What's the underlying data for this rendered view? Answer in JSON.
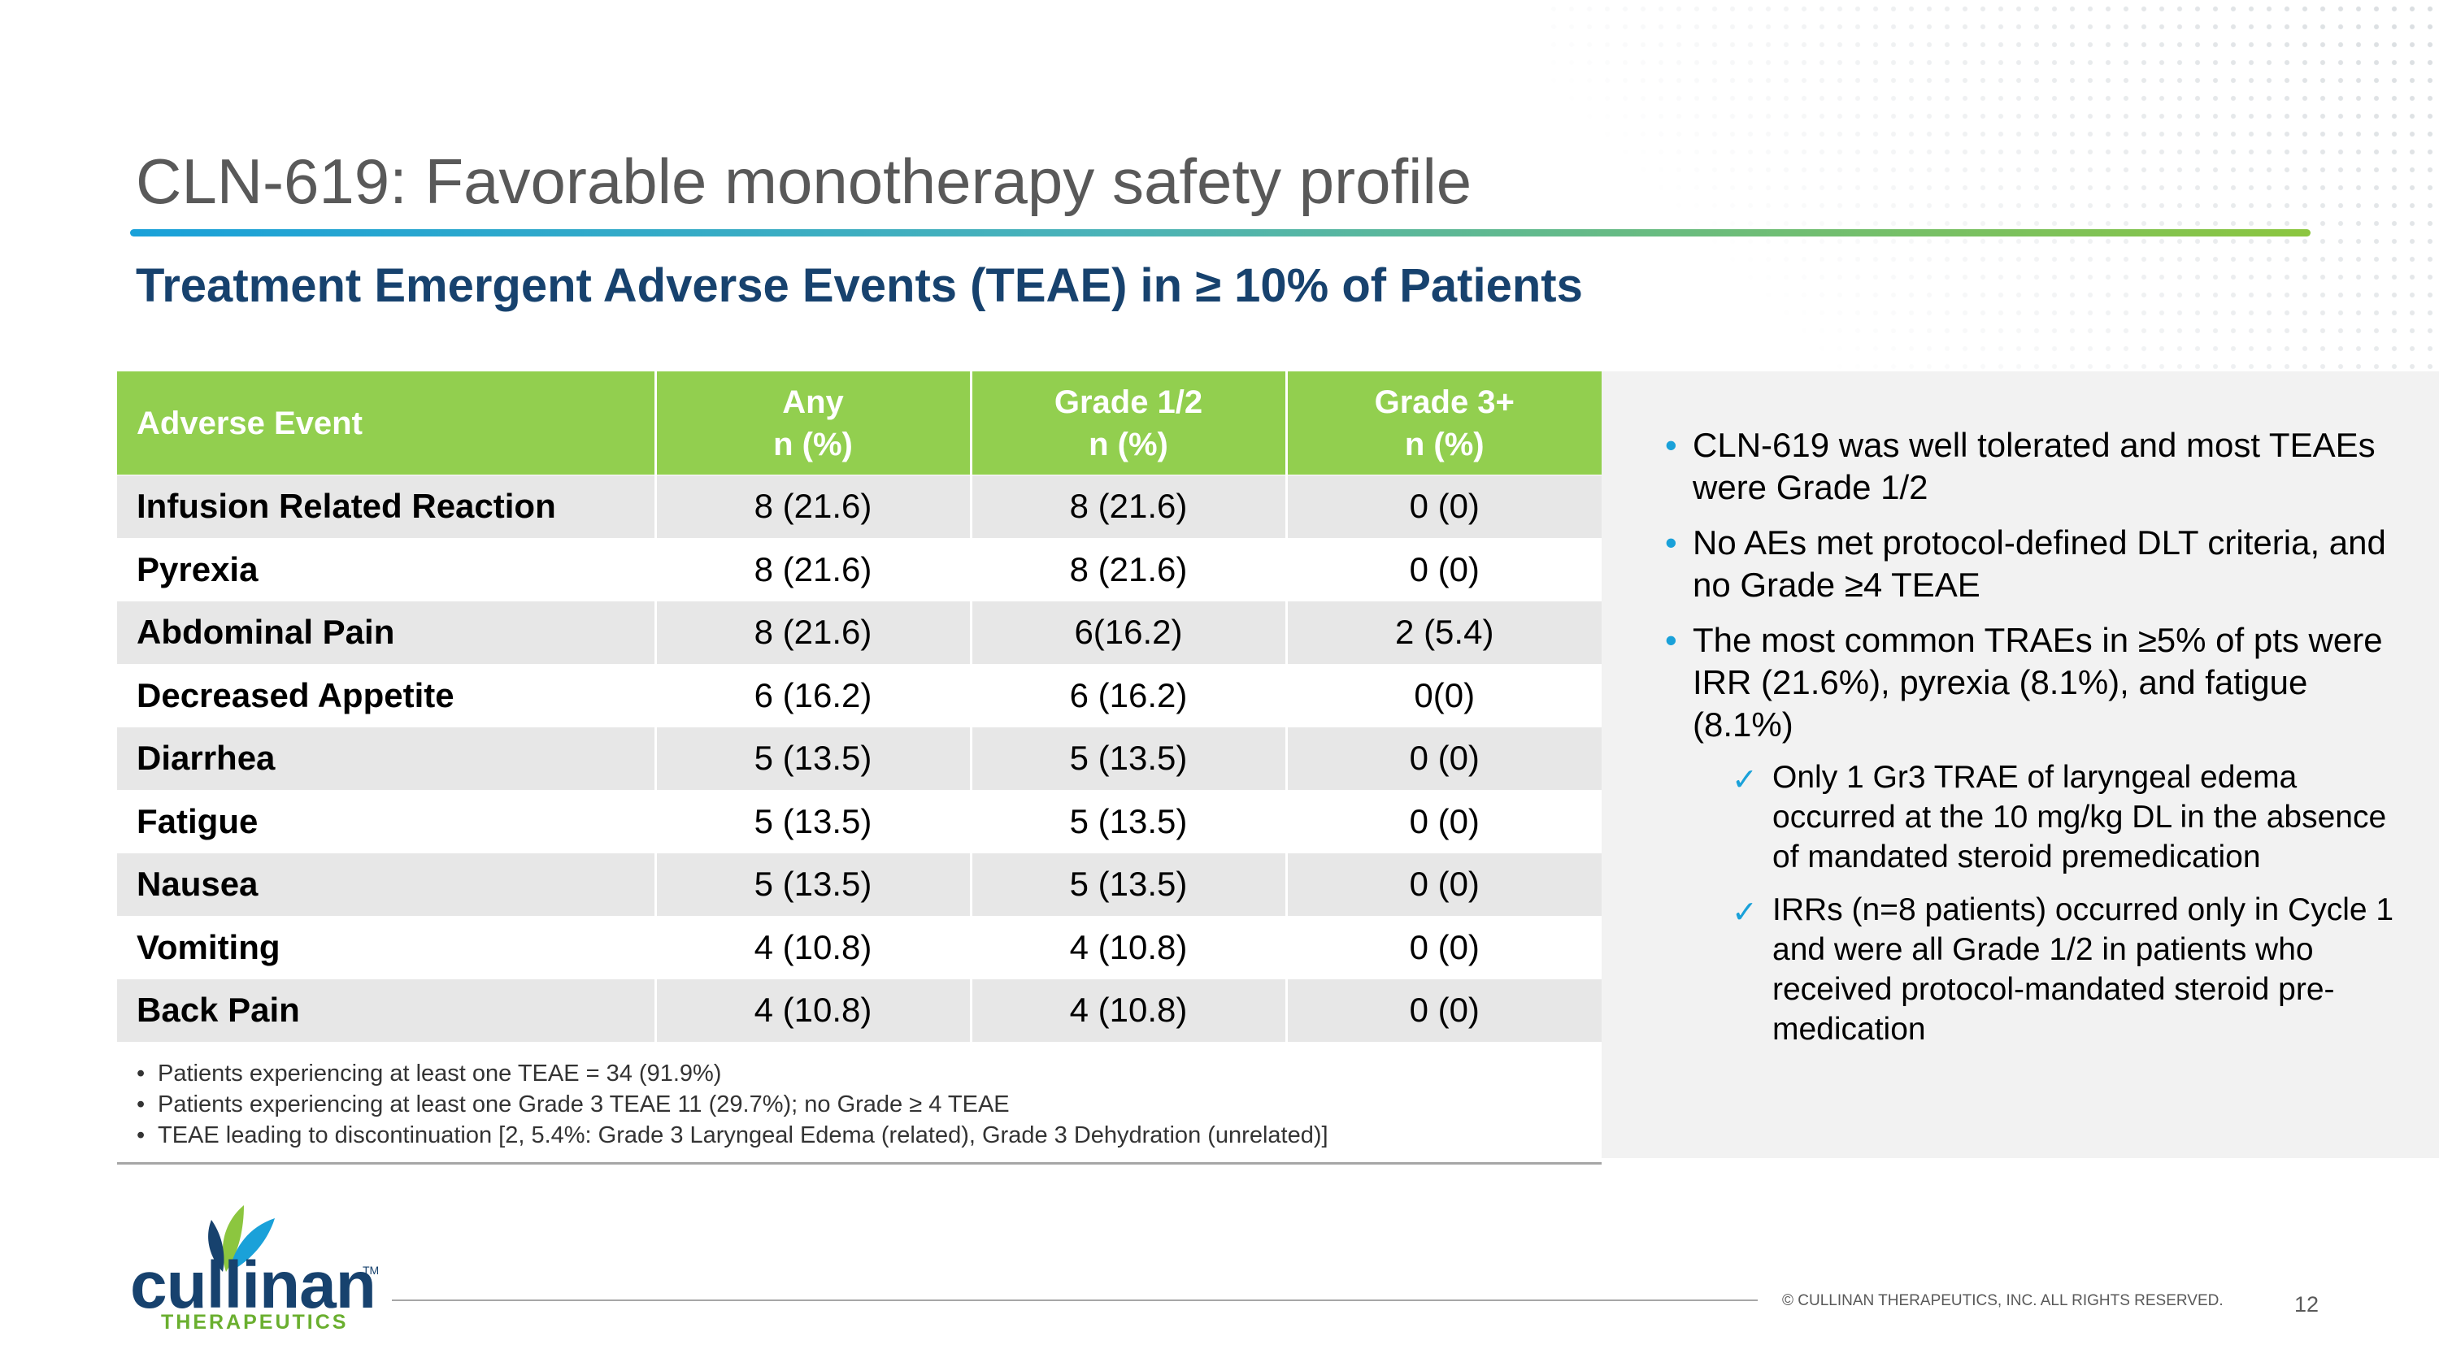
{
  "title": "CLN-619: Favorable monotherapy safety profile",
  "subtitle": "Treatment Emergent Adverse Events (TEAE) in ≥ 10% of Patients",
  "table": {
    "headers": [
      {
        "line1": "Adverse Event",
        "line2": ""
      },
      {
        "line1": "Any",
        "line2": "n (%)"
      },
      {
        "line1": "Grade 1/2",
        "line2": "n (%)"
      },
      {
        "line1": "Grade 3+",
        "line2": "n (%)"
      }
    ],
    "rows": [
      {
        "event": "Infusion Related Reaction",
        "any": "8 (21.6)",
        "g12": "8 (21.6)",
        "g3": "0 (0)"
      },
      {
        "event": "Pyrexia",
        "any": "8 (21.6)",
        "g12": "8 (21.6)",
        "g3": "0 (0)"
      },
      {
        "event": "Abdominal Pain",
        "any": "8 (21.6)",
        "g12": "6(16.2)",
        "g3": "2 (5.4)"
      },
      {
        "event": "Decreased Appetite",
        "any": "6 (16.2)",
        "g12": "6 (16.2)",
        "g3": "0(0)"
      },
      {
        "event": "Diarrhea",
        "any": "5 (13.5)",
        "g12": "5 (13.5)",
        "g3": "0 (0)"
      },
      {
        "event": "Fatigue",
        "any": "5 (13.5)",
        "g12": "5 (13.5)",
        "g3": "0 (0)"
      },
      {
        "event": "Nausea",
        "any": "5 (13.5)",
        "g12": "5 (13.5)",
        "g3": "0 (0)"
      },
      {
        "event": "Vomiting",
        "any": "4 (10.8)",
        "g12": "4 (10.8)",
        "g3": "0 (0)"
      },
      {
        "event": "Back Pain",
        "any": "4 (10.8)",
        "g12": "4 (10.8)",
        "g3": "0 (0)"
      }
    ],
    "notes": [
      "Patients experiencing at least one TEAE = 34 (91.9%)",
      "Patients experiencing at least one Grade 3 TEAE 11 (29.7%); no Grade ≥ 4 TEAE",
      "TEAE leading to discontinuation [2, 5.4%: Grade 3 Laryngeal Edema (related), Grade 3 Dehydration (unrelated)]"
    ]
  },
  "panel": {
    "bullets": [
      "CLN-619 was well tolerated and most TEAEs were Grade 1/2",
      "No AEs met protocol-defined DLT criteria, and no Grade ≥4 TEAE",
      "The most common TRAEs in ≥5% of pts were IRR (21.6%), pyrexia (8.1%), and fatigue (8.1%)"
    ],
    "sub_bullets": [
      "Only 1 Gr3 TRAE of laryngeal edema occurred at the 10 mg/kg DL in the absence of mandated steroid premedication",
      "IRRs (n=8 patients) occurred only in Cycle 1 and were all Grade 1/2 in patients who received protocol-mandated steroid pre-medication"
    ]
  },
  "footer": {
    "logo_name": "cullinan",
    "logo_sub": "THERAPEUTICS",
    "logo_tm": "TM",
    "copyright": "© CULLINAN THERAPEUTICS, INC. ALL RIGHTS RESERVED.",
    "page": "12"
  },
  "colors": {
    "header_green": "#92cf4f",
    "title_gray": "#595959",
    "subtitle_navy": "#17426e",
    "accent_blue": "#1aa1d9"
  },
  "icons": [
    "check-icon",
    "cullinan-logo-icon"
  ]
}
